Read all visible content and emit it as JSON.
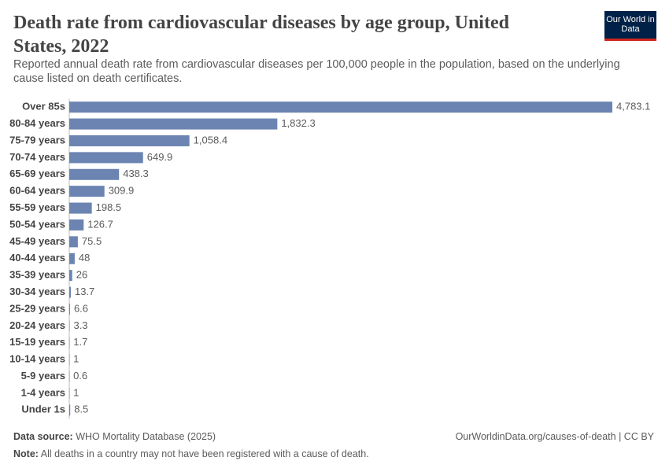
{
  "chart_data": {
    "type": "bar",
    "orientation": "horizontal",
    "title": "Death rate from cardiovascular diseases by age group, United States, 2022",
    "subtitle": "Reported annual death rate from cardiovascular diseases per 100,000 people in the population, based on the underlying cause listed on death certificates.",
    "logo": "Our World in Data",
    "categories": [
      "Over 85s",
      "80-84 years",
      "75-79 years",
      "70-74 years",
      "65-69 years",
      "60-64 years",
      "55-59 years",
      "50-54 years",
      "45-49 years",
      "40-44 years",
      "35-39 years",
      "30-34 years",
      "25-29 years",
      "20-24 years",
      "15-19 years",
      "10-14 years",
      "5-9 years",
      "1-4 years",
      "Under 1s"
    ],
    "values": [
      4783.1,
      1832.3,
      1058.4,
      649.9,
      438.3,
      309.9,
      198.5,
      126.7,
      75.5,
      48,
      26,
      13.7,
      6.6,
      3.3,
      1.7,
      1,
      0.6,
      1,
      8.5
    ],
    "value_labels": [
      "4,783.1",
      "1,832.3",
      "1,058.4",
      "649.9",
      "438.3",
      "309.9",
      "198.5",
      "126.7",
      "75.5",
      "48",
      "26",
      "13.7",
      "6.6",
      "3.3",
      "1.7",
      "1",
      "0.6",
      "1",
      "8.5"
    ],
    "color": "#6b84b1",
    "source": {
      "label": "Data source:",
      "text": "WHO Mortality Database (2025)"
    },
    "url": "OurWorldinData.org/causes-of-death | CC BY",
    "note": {
      "label": "Note:",
      "text": "All deaths in a country may not have been registered with a cause of death."
    }
  }
}
